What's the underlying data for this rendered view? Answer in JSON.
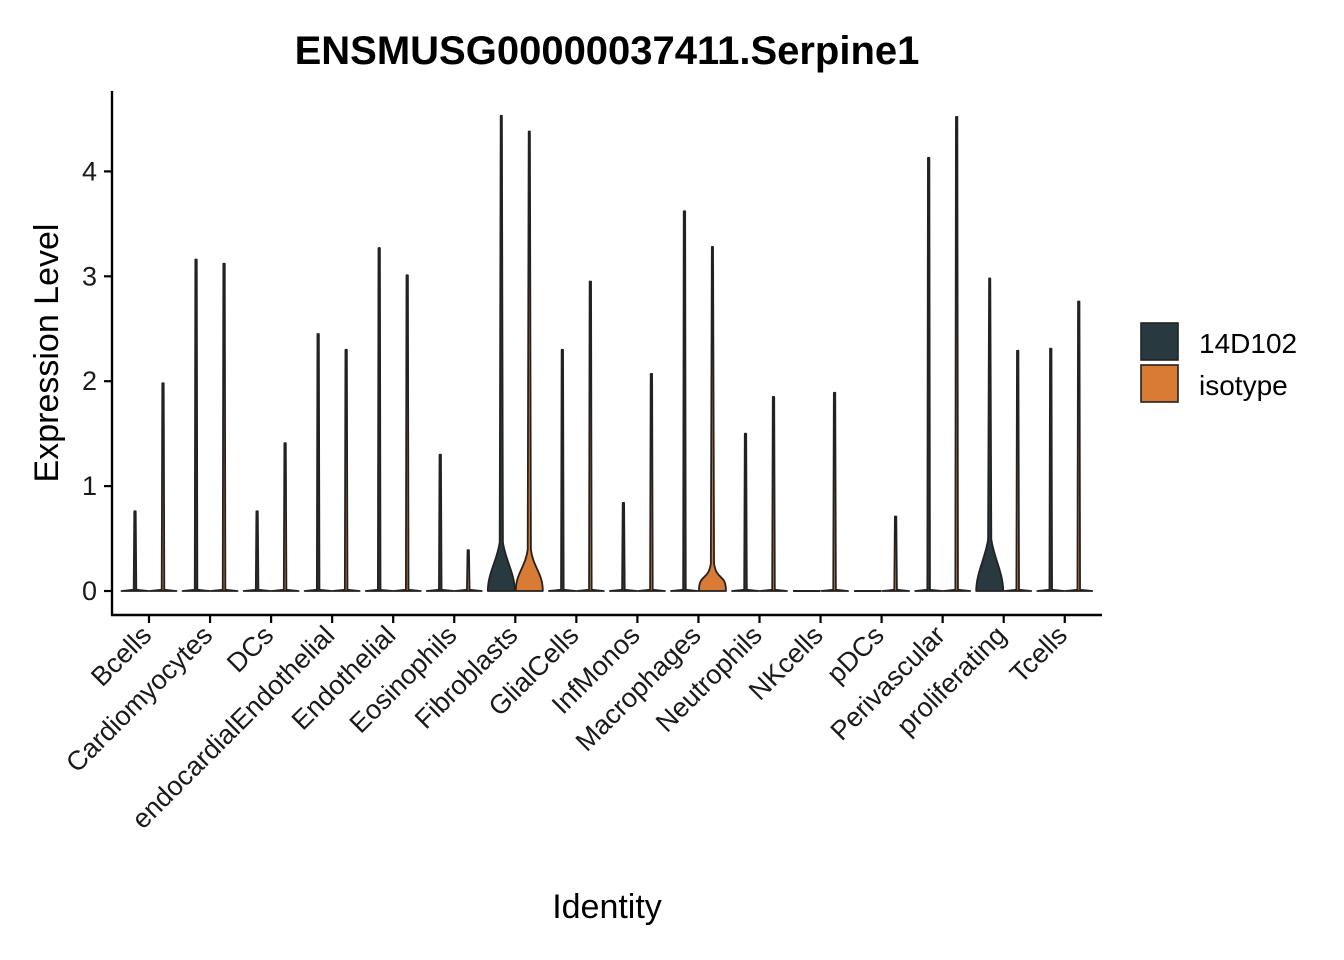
{
  "chart_data": {
    "type": "violin",
    "title": "ENSMUSG00000037411.Serpine1",
    "xlabel": "Identity",
    "ylabel": "Expression Level",
    "ylim": [
      -0.23,
      4.8
    ],
    "yticks": [
      0,
      1,
      2,
      3,
      4
    ],
    "categories": [
      "Bcells",
      "Cardiomyocytes",
      "DCs",
      "endocardialEndothelial",
      "Endothelial",
      "Eosinophils",
      "Fibroblasts",
      "GlialCells",
      "InfMonos",
      "Macrophages",
      "Neutrophils",
      "NKcells",
      "pDCs",
      "Perivascular",
      "proliferating",
      "Tcells"
    ],
    "legend": {
      "position": "right"
    },
    "series": [
      {
        "name": "14D102",
        "color": "#283a40",
        "max": [
          0.76,
          3.16,
          0.76,
          2.45,
          3.27,
          1.3,
          4.53,
          2.3,
          0.84,
          3.62,
          1.5,
          null,
          null,
          4.13,
          2.98,
          2.31
        ],
        "bulk_height": [
          0,
          0,
          0,
          0,
          0,
          0,
          0.35,
          0,
          0,
          0,
          0,
          0,
          0,
          0,
          0.38,
          0
        ]
      },
      {
        "name": "isotype",
        "color": "#d97a35",
        "max": [
          1.98,
          3.12,
          1.41,
          2.3,
          3.01,
          0.39,
          4.38,
          2.95,
          2.07,
          3.28,
          1.85,
          1.89,
          0.71,
          4.52,
          2.29,
          2.76
        ],
        "bulk_height": [
          0,
          0,
          0,
          0,
          0,
          0,
          0.28,
          0,
          0,
          0.15,
          0,
          0,
          0,
          0,
          0,
          0
        ]
      }
    ]
  }
}
